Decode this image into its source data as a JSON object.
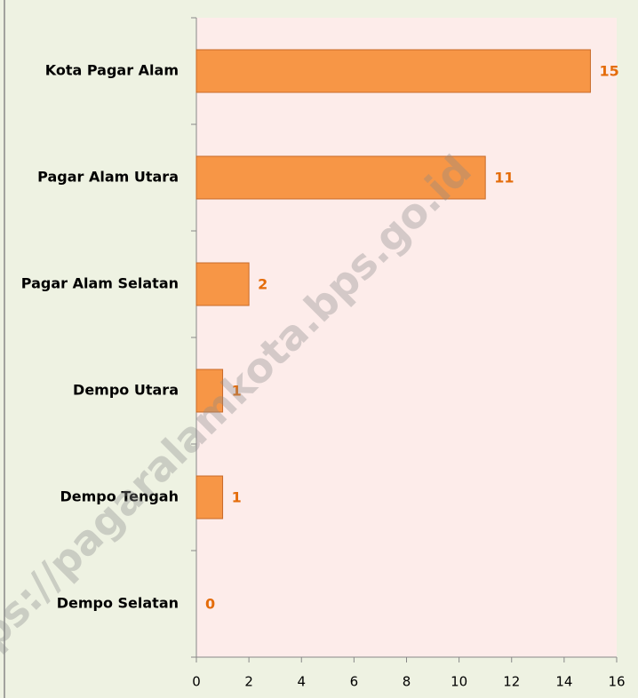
{
  "chart_data": {
    "type": "hbar",
    "categories": [
      "Kota Pagar Alam",
      "Pagar Alam Utara",
      "Pagar Alam Selatan",
      "Dempo Utara",
      "Dempo Tengah",
      "Dempo Selatan"
    ],
    "values": [
      15,
      11,
      2,
      1,
      1,
      0
    ],
    "color": "#f79646",
    "label_color": "#e46c0a",
    "xlim": [
      0,
      16
    ],
    "xticks": [
      0,
      2,
      4,
      6,
      8,
      10,
      12,
      14,
      16
    ],
    "watermark": "ps://pagaralamkota.bps.go.id"
  }
}
